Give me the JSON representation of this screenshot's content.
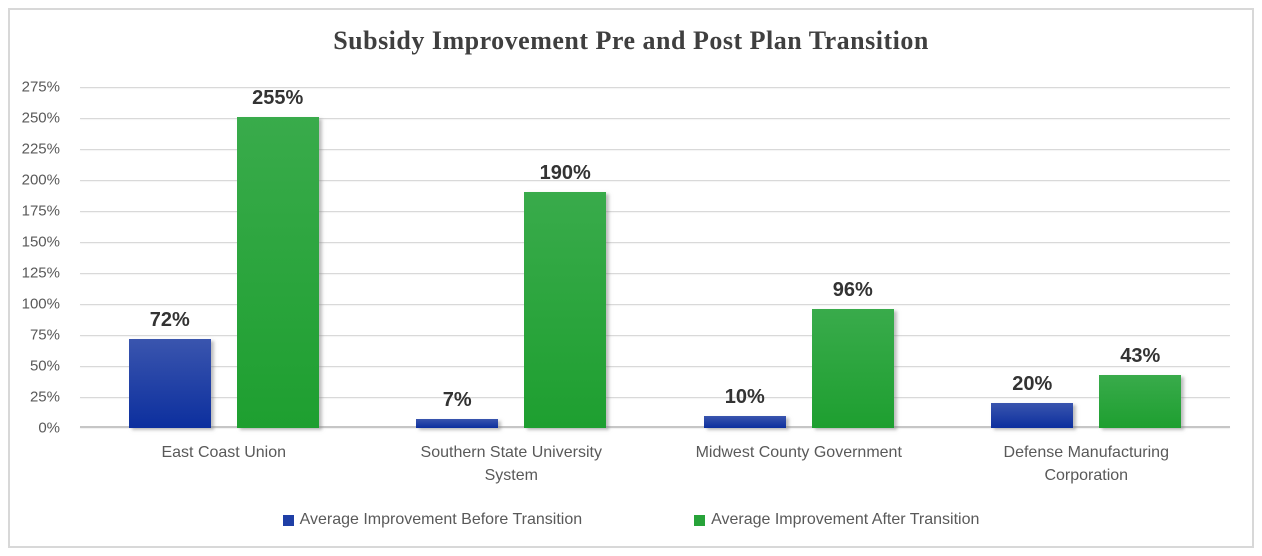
{
  "chart_data": {
    "type": "bar",
    "title": "Subsidy Improvement Pre and Post Plan Transition",
    "categories": [
      "East Coast Union",
      "Southern State University System",
      "Midwest County Government",
      "Defense Manufacturing Corporation"
    ],
    "series": [
      {
        "name": "Average Improvement Before Transition",
        "values": [
          72,
          7,
          10,
          20
        ],
        "labels": [
          "72%",
          "7%",
          "10%",
          "20%"
        ],
        "swatch_color": "#1f3fa6",
        "gradient_top": "#3a55ae",
        "gradient_bottom": "#0c2f9e"
      },
      {
        "name": "Average Improvement After Transition",
        "values": [
          255,
          190,
          96,
          43
        ],
        "labels": [
          "255%",
          "190%",
          "96%",
          "43%"
        ],
        "swatch_color": "#27a339",
        "gradient_top": "#39ab4b",
        "gradient_bottom": "#1e9f30"
      }
    ],
    "ylim": [
      0,
      275
    ],
    "ytick_step": 25,
    "ytick_labels": [
      "0%",
      "25%",
      "50%",
      "75%",
      "100%",
      "125%",
      "150%",
      "175%",
      "200%",
      "225%",
      "250%",
      "275%"
    ],
    "grid": true,
    "legend_position": "bottom"
  },
  "colors": {
    "background": "#ffffff",
    "frame_border": "#d8d8d8",
    "gridline": "#d9d9d9",
    "baseline": "#c6c6c6",
    "axis_text": "#595959",
    "data_label": "#333333",
    "title_text": "#3f3f3f"
  }
}
